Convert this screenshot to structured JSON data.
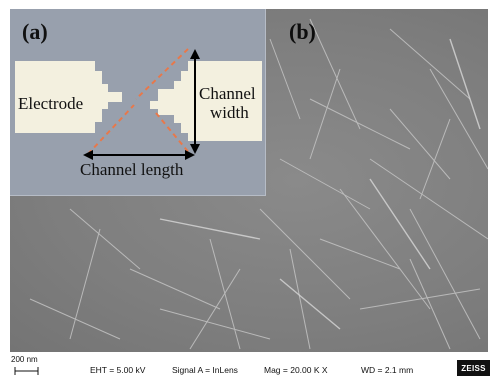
{
  "panels": {
    "a": {
      "label": "(a)"
    },
    "b": {
      "label": "(b)"
    }
  },
  "inset": {
    "electrode_label": "Electrode",
    "channel_width_line1": "Channel",
    "channel_width_line2": "width",
    "channel_length_label": "Channel length",
    "colors": {
      "background": "#98a0ad",
      "electrode": "#f3f0df",
      "dashed": "#e8784a",
      "arrow": "#000000"
    }
  },
  "sem_info": {
    "scale_bar": "200 nm",
    "eht": "EHT = 5.00 kV",
    "signal": "Signal A = InLens",
    "mag": "Mag = 20.00 K X",
    "wd": "WD = 2.1 mm",
    "logo": "ZEISS"
  }
}
